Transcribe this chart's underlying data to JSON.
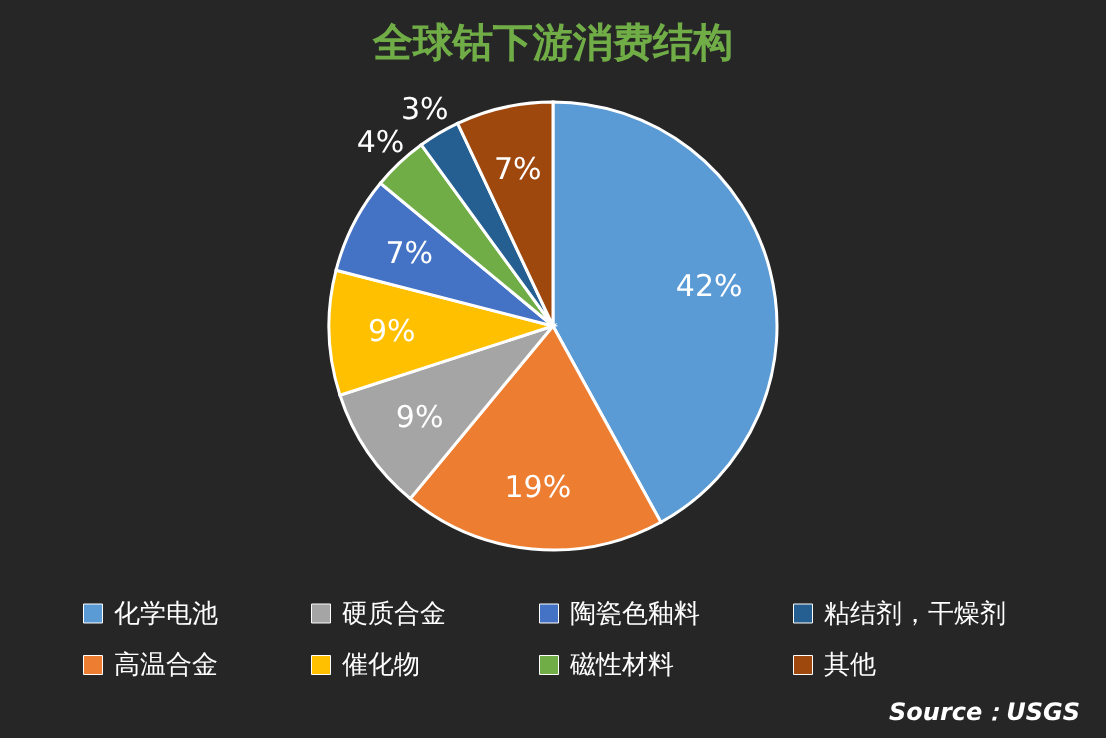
{
  "chart_data": {
    "type": "pie",
    "title": "全球钴下游消费结构",
    "categories": [
      "化学电池",
      "高温合金",
      "硬质合金",
      "催化物",
      "陶瓷色釉料",
      "磁性材料",
      "粘结剂，干燥剂",
      "其他"
    ],
    "values": [
      42,
      19,
      9,
      9,
      7,
      4,
      3,
      7
    ],
    "value_labels": [
      "42%",
      "19%",
      "9%",
      "9%",
      "7%",
      "4%",
      "3%",
      "7%"
    ],
    "colors": [
      "#5b9bd5",
      "#ed7d31",
      "#a5a5a5",
      "#ffc000",
      "#4472c4",
      "#70ad47",
      "#255e91",
      "#9e480e"
    ],
    "legend": "bottom",
    "annotations": [
      "Source：USGS"
    ]
  }
}
